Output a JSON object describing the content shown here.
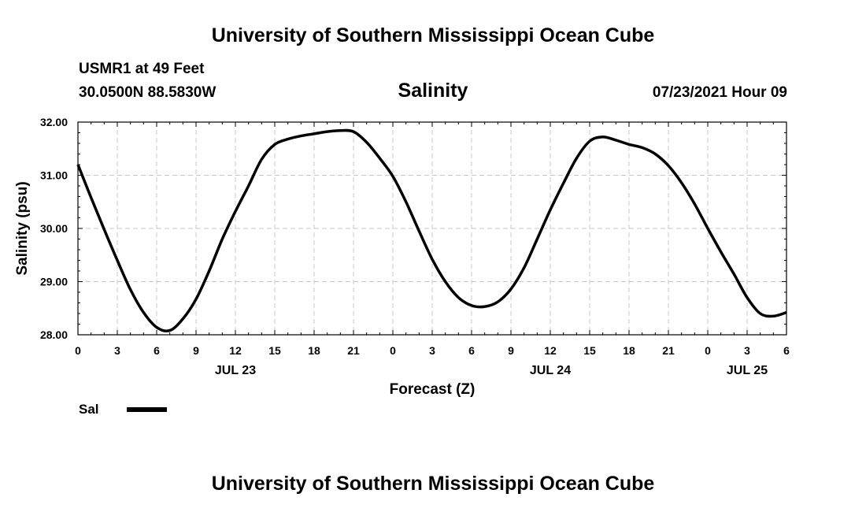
{
  "header": {
    "title": "University of Southern Mississippi Ocean Cube",
    "station": "USMR1 at 49 Feet",
    "coordinates": "30.0500N  88.5830W",
    "variable": "Salinity",
    "datetime": "07/23/2021 Hour 09"
  },
  "footer": {
    "title": "University of Southern Mississippi Ocean Cube"
  },
  "legend": {
    "label": "Sal",
    "color": "#000000"
  },
  "chart_data": {
    "type": "line",
    "title": "Salinity",
    "xlabel": "Forecast (Z)",
    "ylabel": "Salinity (psu)",
    "xlim": [
      0,
      54
    ],
    "ylim": [
      28.0,
      32.0
    ],
    "grid": true,
    "legend_position": "bottom-left",
    "x_ticks": [
      0,
      3,
      6,
      9,
      12,
      15,
      18,
      21,
      24,
      27,
      30,
      33,
      36,
      39,
      42,
      45,
      48,
      51,
      54
    ],
    "x_tick_labels": [
      "0",
      "3",
      "6",
      "9",
      "12",
      "15",
      "18",
      "21",
      "0",
      "3",
      "6",
      "9",
      "12",
      "15",
      "18",
      "21",
      "0",
      "3",
      "6"
    ],
    "y_ticks": [
      28.0,
      29.0,
      30.0,
      31.0,
      32.0
    ],
    "y_tick_labels": [
      "28.00",
      "29.00",
      "30.00",
      "31.00",
      "32.00"
    ],
    "date_labels": [
      {
        "x": 12,
        "label": "JUL 23"
      },
      {
        "x": 36,
        "label": "JUL 24"
      },
      {
        "x": 51,
        "label": "JUL 25"
      }
    ],
    "series": [
      {
        "name": "Sal",
        "x": [
          0,
          1,
          2,
          3,
          4,
          5,
          6,
          7,
          8,
          9,
          10,
          11,
          12,
          13,
          14,
          15,
          16,
          17,
          18,
          19,
          20,
          21,
          22,
          23,
          24,
          25,
          26,
          27,
          28,
          29,
          30,
          31,
          32,
          33,
          34,
          35,
          36,
          37,
          38,
          39,
          40,
          41,
          42,
          43,
          44,
          45,
          46,
          47,
          48,
          49,
          50,
          51,
          52,
          53,
          54
        ],
        "values": [
          31.2,
          30.58,
          29.98,
          29.4,
          28.85,
          28.42,
          28.14,
          28.08,
          28.3,
          28.67,
          29.2,
          29.8,
          30.32,
          30.8,
          31.3,
          31.58,
          31.68,
          31.74,
          31.78,
          31.82,
          31.84,
          31.82,
          31.62,
          31.32,
          30.98,
          30.5,
          29.95,
          29.42,
          29.0,
          28.7,
          28.55,
          28.53,
          28.62,
          28.86,
          29.26,
          29.8,
          30.35,
          30.85,
          31.32,
          31.64,
          31.72,
          31.66,
          31.58,
          31.52,
          31.4,
          31.18,
          30.86,
          30.46,
          30.0,
          29.56,
          29.14,
          28.7,
          28.4,
          28.35,
          28.42
        ]
      }
    ]
  }
}
